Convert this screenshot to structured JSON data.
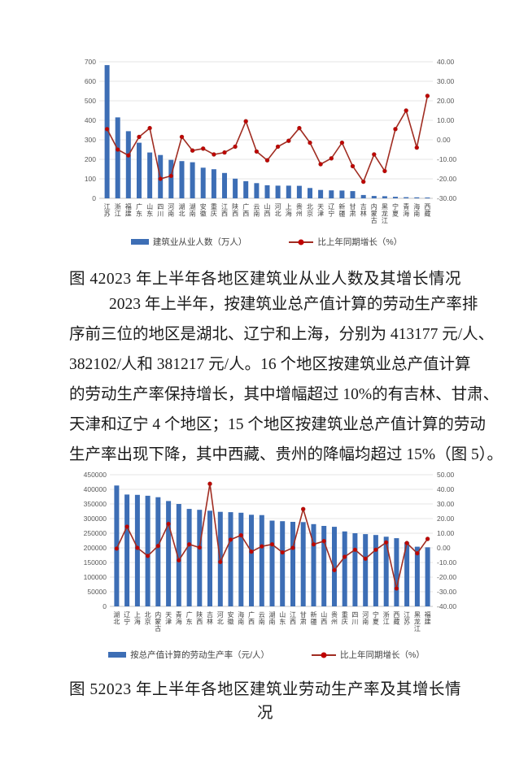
{
  "colors": {
    "bar": "#3D6EB5",
    "line": "#A02C21",
    "marker": "#C00000",
    "grid": "#E5E5E5",
    "baseline": "#C6C6C6",
    "axis_text": "#595959",
    "category_text": "#404040"
  },
  "figures": {
    "fig4_caption": "图 42023 年上半年各地区建筑业从业人数及其增长情况",
    "fig5_caption": "图 52023 年上半年各地区建筑业劳动生产率及其增长情况"
  },
  "paragraph": {
    "lines": [
      "2023 年上半年，按建筑业总产值计算的劳动生产率排",
      "序前三位的地区是湖北、辽宁和上海，分别为 413177 元/人、",
      "382102/人和 381217 元/人。16 个地区按建筑业总产值计算",
      "的劳动生产率保持增长，其中增幅超过 10%的有吉林、甘肃、",
      "天津和辽宁 4 个地区；15 个地区按建筑业总产值计算的劳动",
      "生产率出现下降，其中西藏、贵州的降幅均超过 15%（图 5）。"
    ]
  },
  "chart_data": [
    {
      "type": "bar",
      "subtype": "bar-line-combo",
      "title": "2023 年上半年各地区建筑业从业人数及其增长情况",
      "categories": [
        "江苏",
        "浙江",
        "福建",
        "广东",
        "山东",
        "四川",
        "河南",
        "湖北",
        "湖南",
        "安徽",
        "重庆",
        "江西",
        "陕西",
        "广西",
        "云南",
        "山西",
        "河北",
        "上海",
        "贵州",
        "北京",
        "天津",
        "辽宁",
        "新疆",
        "甘肃",
        "吉林",
        "内蒙古",
        "黑龙江",
        "宁夏",
        "青海",
        "海南",
        "西藏"
      ],
      "series": [
        {
          "name": "建筑业从业人数（万人）",
          "type": "bar",
          "axis": "left",
          "values": [
            683,
            415,
            344,
            285,
            235,
            222,
            197,
            191,
            185,
            157,
            149,
            130,
            101,
            88,
            78,
            67,
            65,
            65,
            64,
            53,
            43,
            41,
            40,
            37,
            17,
            12,
            11,
            8,
            6,
            5,
            4
          ]
        },
        {
          "name": "比上年同期增长（%）",
          "type": "line",
          "axis": "right",
          "values": [
            5.5,
            -5,
            -8,
            1.5,
            6,
            -20,
            -18.5,
            1.5,
            -5.5,
            -4.5,
            -7.5,
            -6.5,
            -3.5,
            9.5,
            -6,
            -10.5,
            -3.5,
            -0.5,
            6,
            -1.5,
            -12.5,
            -9.5,
            -1.5,
            -13.5,
            -21.5,
            -7.5,
            -16,
            5.5,
            15,
            -4,
            22.5
          ]
        }
      ],
      "left_axis": {
        "min": 0,
        "max": 700,
        "step": 100,
        "decimals": 0
      },
      "right_axis": {
        "min": -30,
        "max": 40,
        "step": 10,
        "decimals": 2
      },
      "grid": true,
      "legend_position": "bottom"
    },
    {
      "type": "bar",
      "subtype": "bar-line-combo",
      "title": "2023 年上半年各地区建筑业劳动生产率及其增长情况",
      "categories": [
        "湖北",
        "辽宁",
        "上海",
        "北京",
        "内蒙古",
        "天津",
        "青海",
        "广东",
        "陕西",
        "吉林",
        "河北",
        "安徽",
        "海南",
        "广西",
        "云南",
        "湖南",
        "山东",
        "江西",
        "甘肃",
        "新疆",
        "山西",
        "贵州",
        "重庆",
        "四川",
        "河南",
        "宁夏",
        "浙江",
        "西藏",
        "江苏",
        "黑龙江",
        "福建"
      ],
      "series": [
        {
          "name": "按总产值计算的劳动生产率（元/人）",
          "type": "bar",
          "axis": "left",
          "values": [
            413177,
            382102,
            381217,
            378000,
            373000,
            360000,
            350000,
            333000,
            330000,
            327000,
            323000,
            322000,
            320000,
            313000,
            312000,
            293000,
            291000,
            289000,
            288000,
            281000,
            275000,
            272000,
            256000,
            250000,
            247000,
            244000,
            238000,
            233000,
            219000,
            204000,
            202000
          ]
        },
        {
          "name": "比上年同期增长（%）",
          "type": "line",
          "axis": "right",
          "values": [
            -0.5,
            14.5,
            0,
            -5.5,
            1.3,
            16.4,
            -8.5,
            2.4,
            0.2,
            43.8,
            -9.6,
            5.6,
            8.6,
            -2.6,
            1,
            2.4,
            -3.1,
            0,
            26.5,
            2.4,
            4.6,
            -15.2,
            -6.1,
            -1.3,
            -7.4,
            -1.3,
            3.7,
            -27.8,
            3.3,
            -3.7,
            6.1
          ]
        }
      ],
      "left_axis": {
        "min": 0,
        "max": 450000,
        "step": 50000,
        "decimals": 0
      },
      "right_axis": {
        "min": -40,
        "max": 50,
        "step": 10,
        "decimals": 2
      },
      "grid": true,
      "legend_position": "bottom"
    }
  ]
}
